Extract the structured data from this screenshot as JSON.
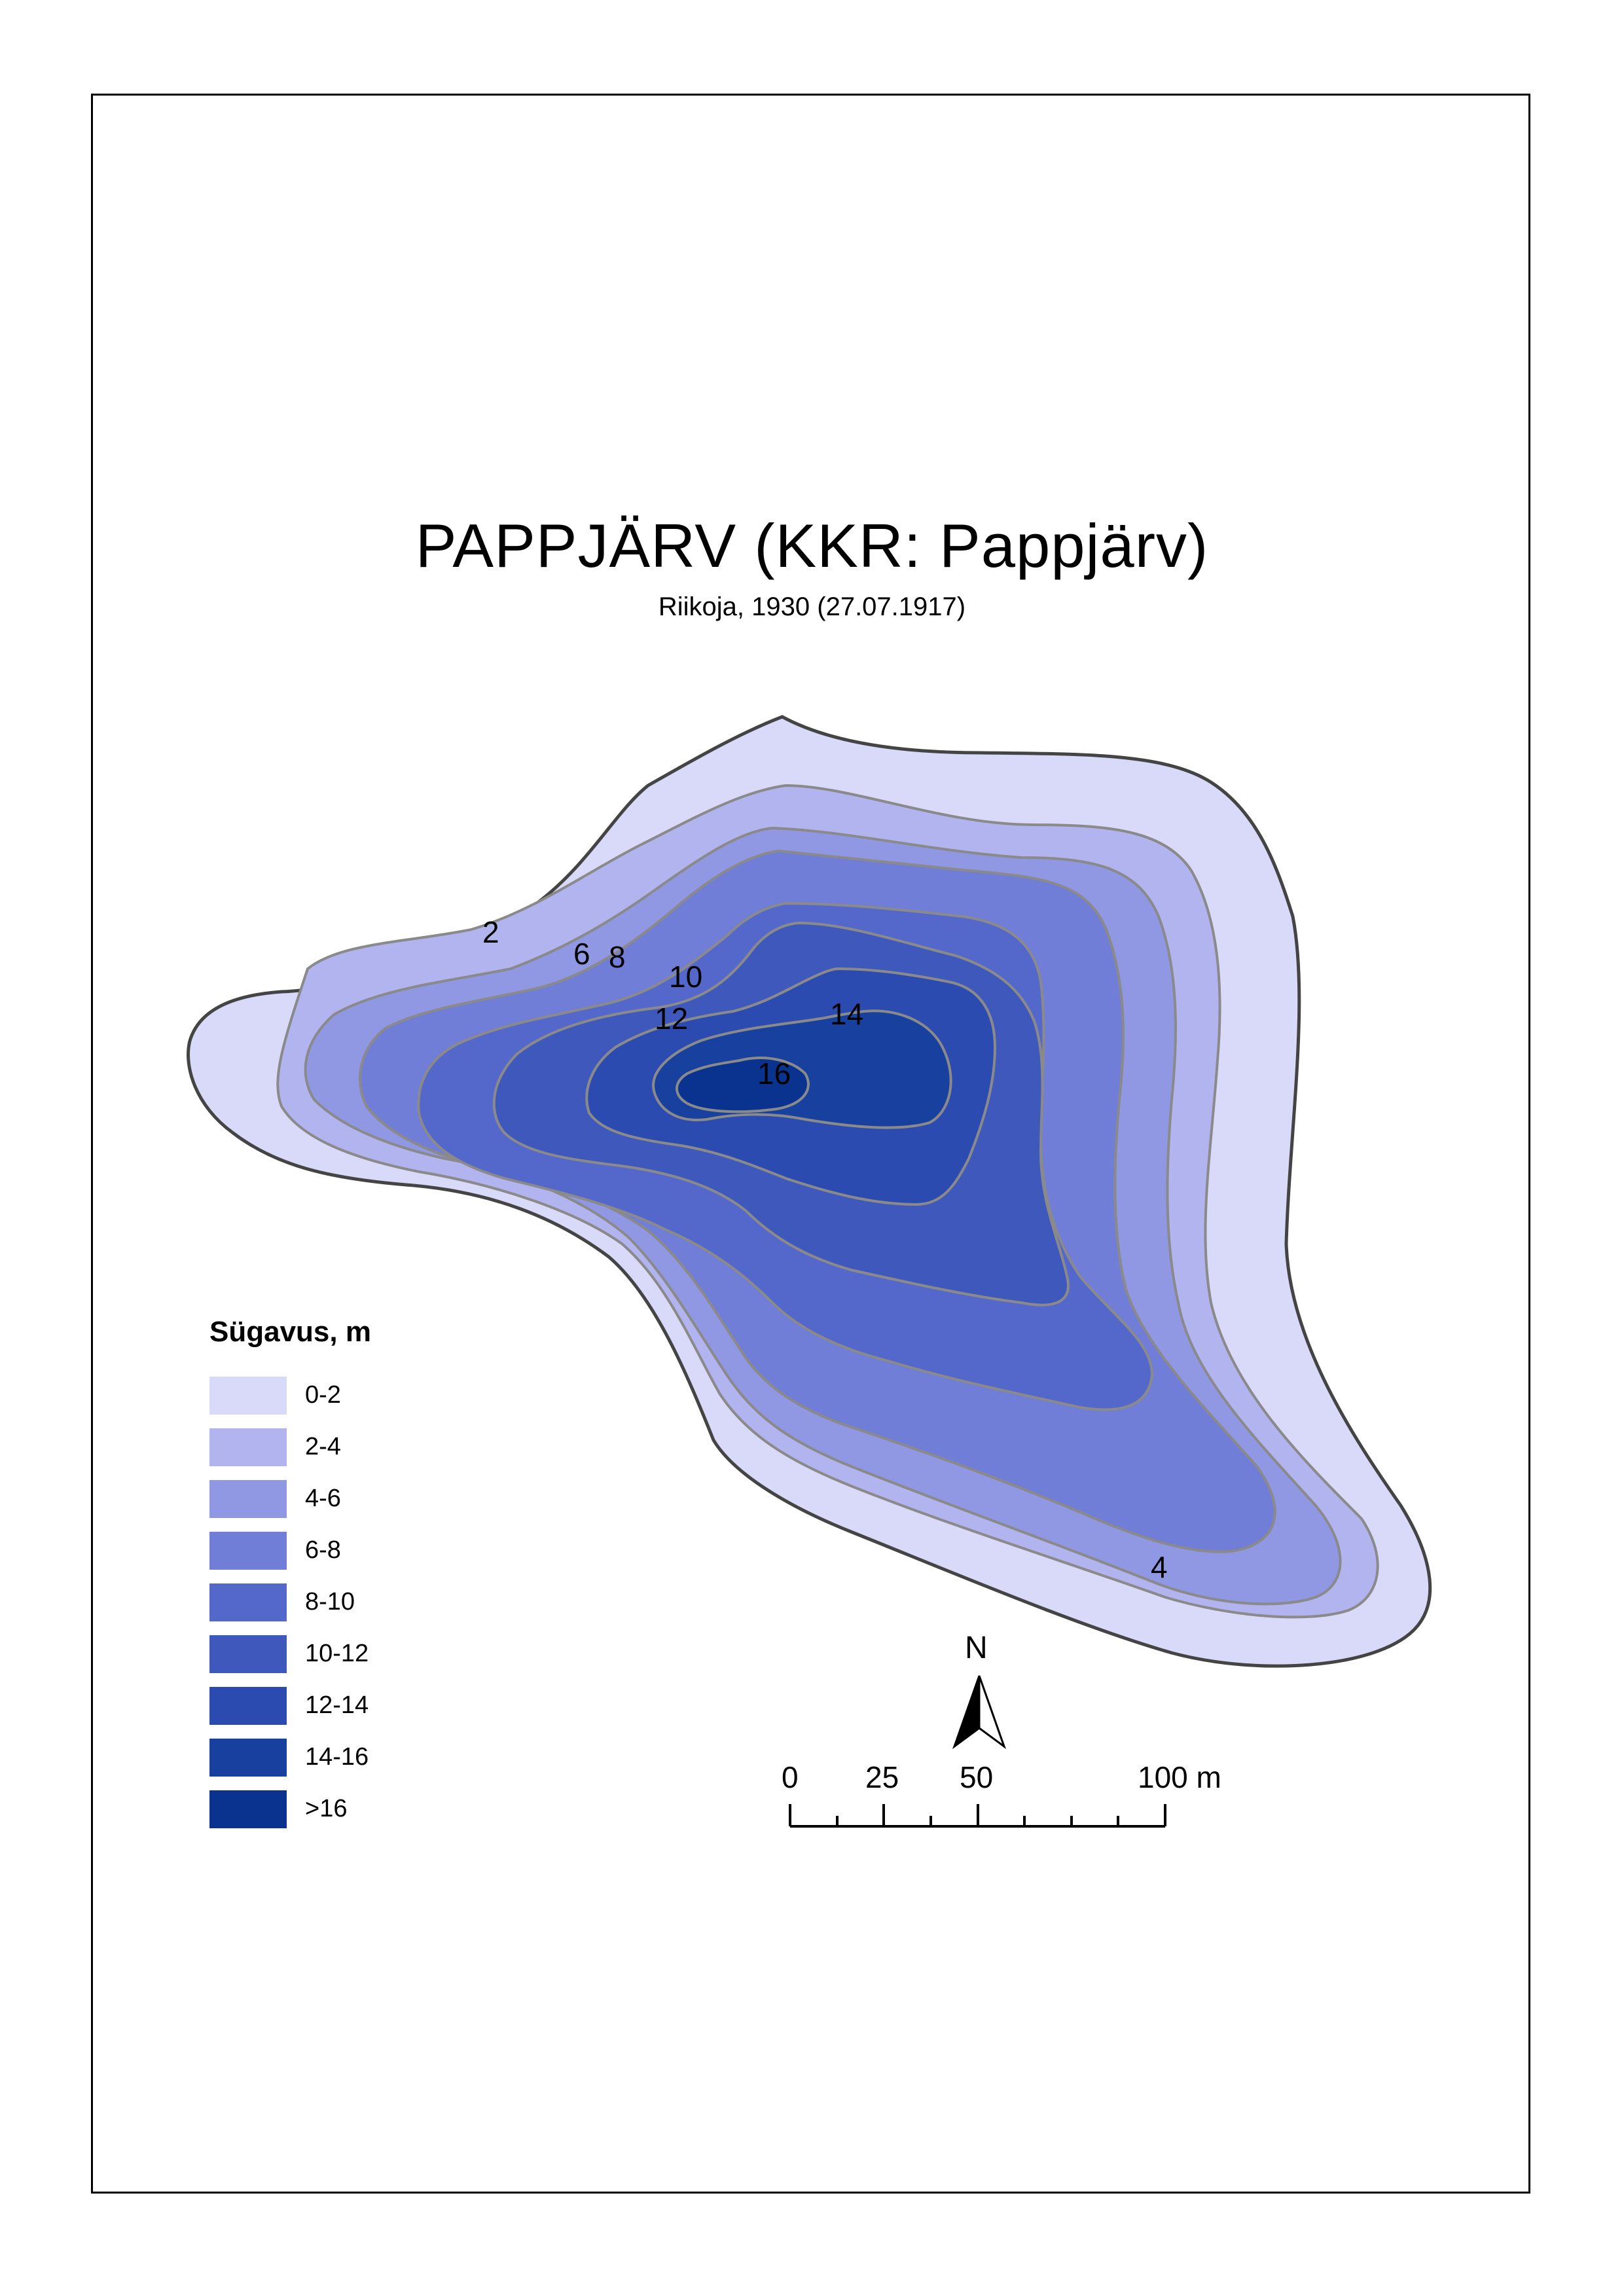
{
  "map": {
    "title": "PAPPJÄRV (KKR: Pappjärv)",
    "subtitle": "Riikoja, 1930 (27.07.1917)"
  },
  "contour_labels": [
    "2",
    "6",
    "8",
    "10",
    "12",
    "14",
    "16",
    "4"
  ],
  "legend": {
    "title": "Sügavus, m",
    "items": [
      {
        "label": "0-2",
        "color": "#d9d9fa"
      },
      {
        "label": "2-4",
        "color": "#b2b4f0"
      },
      {
        "label": "4-6",
        "color": "#9097e3"
      },
      {
        "label": "6-8",
        "color": "#717ed8"
      },
      {
        "label": "8-10",
        "color": "#5468cb"
      },
      {
        "label": "10-12",
        "color": "#3f58bc"
      },
      {
        "label": "12-14",
        "color": "#2c4bb0"
      },
      {
        "label": "14-16",
        "color": "#17409f"
      },
      {
        "label": ">16",
        "color": "#0a3390"
      }
    ]
  },
  "north_arrow": {
    "label": "N"
  },
  "scale_bar": {
    "labels": [
      "0",
      "25",
      "50",
      "100 m"
    ]
  }
}
